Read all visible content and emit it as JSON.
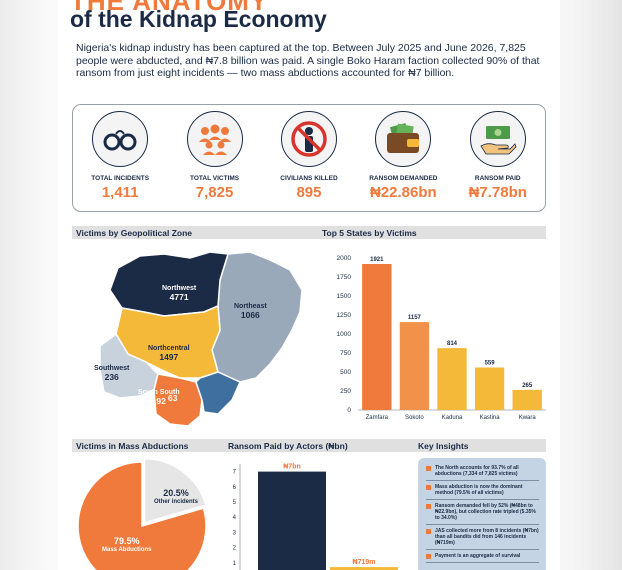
{
  "header": {
    "title_top": "THE ANATOMY",
    "title_main": "of the Kidnap Economy",
    "intro": "Nigeria's kidnap industry has been captured at the top. Between July 2025 and June 2026, 7,825 people were abducted, and ₦7.8 billion was paid. A single Boko Haram faction collected 90% of that ransom from just eight incidents — two mass abductions accounted for ₦7 billion."
  },
  "stats": [
    {
      "label": "TOTAL INCIDENTS",
      "value": "1,411",
      "icon": "handcuffs-icon"
    },
    {
      "label": "TOTAL VICTIMS",
      "value": "7,825",
      "icon": "people-group-icon"
    },
    {
      "label": "CIVILIANS KILLED",
      "value": "895",
      "icon": "no-person-icon"
    },
    {
      "label": "RANSOM DEMANDED",
      "value": "₦22.86bn",
      "icon": "wallet-icon"
    },
    {
      "label": "RANSOM PAID",
      "value": "₦7.78bn",
      "icon": "cash-hand-icon"
    }
  ],
  "sections": {
    "zone": "Victims by Geopolitical Zone",
    "states": "Top 5 States by Victims",
    "mass": "Victims in Mass Abductions",
    "ransom": "Ransom Paid by Actors (₦bn)",
    "insights": "Key Insights"
  },
  "colors": {
    "navy": "#1b2a45",
    "orange": "#f07a3c",
    "amber": "#f5b93a",
    "bar_orange": "#f2924a",
    "grey_blue": "#9aa9ba",
    "steel_blue": "#3f6f9e"
  },
  "map": {
    "zones": [
      {
        "name": "Northwest",
        "value": "4771"
      },
      {
        "name": "Northeast",
        "value": "1066"
      },
      {
        "name": "Northcentral",
        "value": "1497"
      },
      {
        "name": "Southwest",
        "value": "236"
      },
      {
        "name": "South South",
        "value": "192"
      },
      {
        "name": "",
        "value": "63"
      }
    ]
  },
  "chart_data": [
    {
      "type": "bar",
      "title": "Top 5 States by Victims",
      "categories": [
        "Zamfara",
        "Sokoto",
        "Kaduna",
        "Kastina",
        "Kwara"
      ],
      "values": [
        1921,
        1157,
        814,
        559,
        265
      ],
      "ylim": [
        0,
        2000
      ],
      "yticks": [
        0,
        250,
        500,
        750,
        1000,
        1250,
        1500,
        1750,
        2000
      ],
      "bar_colors": [
        "#f07a3c",
        "#f2924a",
        "#f5b93a",
        "#f5b93a",
        "#f5b93a"
      ]
    },
    {
      "type": "pie",
      "title": "Victims in Mass Abductions",
      "slices": [
        {
          "label": "Mass Abductions",
          "percent": "79.5%",
          "value": 79.5,
          "color": "#f07a3c"
        },
        {
          "label": "Other incidents",
          "percent": "20.5%",
          "value": 20.5,
          "color": "#e6e6e6"
        }
      ]
    },
    {
      "type": "bar",
      "title": "Ransom Paid by Actors (₦bn)",
      "values": [
        7,
        0.719
      ],
      "value_labels": [
        "₦7bn",
        "₦719m"
      ],
      "ylim": [
        0,
        7.5
      ],
      "yticks": [
        1,
        2,
        3,
        4,
        5,
        6,
        7
      ],
      "bar_colors": [
        "#1b2a45",
        "#f5b93a"
      ]
    }
  ],
  "insights": [
    "The North accounts for 93.7% of all abductions (7,334 of 7,825 victims)",
    "Mass abduction is now the dominant method (79.5% of all victims)",
    "Ransom demanded fell by 52% (₦48bn to ₦22.9bn), but collection rate tripled (5.35% to 34.0%)",
    "JAS collected more from 8 incidents (₦7bn) than all bandits did from 146 incidents (₦719m)",
    "Payment is an aggregate of survival"
  ]
}
